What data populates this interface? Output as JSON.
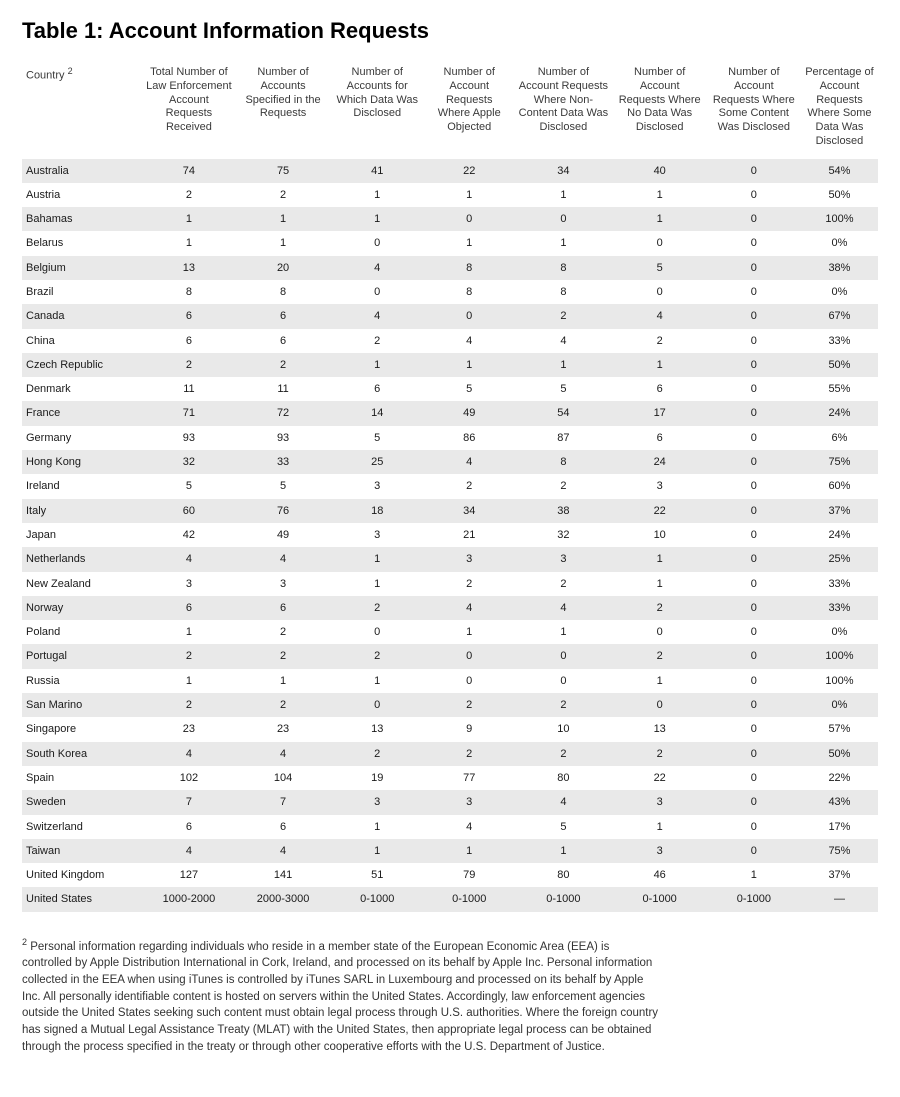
{
  "title": "Table 1: Account Information Requests",
  "footnote_marker": "2",
  "columns": [
    "Country",
    "Total Number of Law Enforcement Account Requests Received",
    "Number of Accounts Specified in the Requests",
    "Number of Accounts for Which Data Was Disclosed",
    "Number of Account Requests Where Apple Objected",
    "Number of Account Requests Where Non-Content Data Was Disclosed",
    "Number of Account Requests Where No Data Was Disclosed",
    "Number of Account Requests Where Some Content Was Disclosed",
    "Percentage of Account Requests Where Some Data Was Disclosed"
  ],
  "column_widths_pct": [
    14,
    11,
    11,
    11,
    10.5,
    11.5,
    11,
    11,
    9
  ],
  "rows": [
    {
      "country": "Australia",
      "c": [
        "74",
        "75",
        "41",
        "22",
        "34",
        "40",
        "0",
        "54%"
      ]
    },
    {
      "country": "Austria",
      "c": [
        "2",
        "2",
        "1",
        "1",
        "1",
        "1",
        "0",
        "50%"
      ]
    },
    {
      "country": "Bahamas",
      "c": [
        "1",
        "1",
        "1",
        "0",
        "0",
        "1",
        "0",
        "100%"
      ]
    },
    {
      "country": "Belarus",
      "c": [
        "1",
        "1",
        "0",
        "1",
        "1",
        "0",
        "0",
        "0%"
      ]
    },
    {
      "country": "Belgium",
      "c": [
        "13",
        "20",
        "4",
        "8",
        "8",
        "5",
        "0",
        "38%"
      ]
    },
    {
      "country": "Brazil",
      "c": [
        "8",
        "8",
        "0",
        "8",
        "8",
        "0",
        "0",
        "0%"
      ]
    },
    {
      "country": "Canada",
      "c": [
        "6",
        "6",
        "4",
        "0",
        "2",
        "4",
        "0",
        "67%"
      ]
    },
    {
      "country": "China",
      "c": [
        "6",
        "6",
        "2",
        "4",
        "4",
        "2",
        "0",
        "33%"
      ]
    },
    {
      "country": "Czech Republic",
      "c": [
        "2",
        "2",
        "1",
        "1",
        "1",
        "1",
        "0",
        "50%"
      ]
    },
    {
      "country": "Denmark",
      "c": [
        "11",
        "11",
        "6",
        "5",
        "5",
        "6",
        "0",
        "55%"
      ]
    },
    {
      "country": "France",
      "c": [
        "71",
        "72",
        "14",
        "49",
        "54",
        "17",
        "0",
        "24%"
      ]
    },
    {
      "country": "Germany",
      "c": [
        "93",
        "93",
        "5",
        "86",
        "87",
        "6",
        "0",
        "6%"
      ]
    },
    {
      "country": "Hong Kong",
      "c": [
        "32",
        "33",
        "25",
        "4",
        "8",
        "24",
        "0",
        "75%"
      ]
    },
    {
      "country": "Ireland",
      "c": [
        "5",
        "5",
        "3",
        "2",
        "2",
        "3",
        "0",
        "60%"
      ]
    },
    {
      "country": "Italy",
      "c": [
        "60",
        "76",
        "18",
        "34",
        "38",
        "22",
        "0",
        "37%"
      ]
    },
    {
      "country": "Japan",
      "c": [
        "42",
        "49",
        "3",
        "21",
        "32",
        "10",
        "0",
        "24%"
      ]
    },
    {
      "country": "Netherlands",
      "c": [
        "4",
        "4",
        "1",
        "3",
        "3",
        "1",
        "0",
        "25%"
      ]
    },
    {
      "country": "New Zealand",
      "c": [
        "3",
        "3",
        "1",
        "2",
        "2",
        "1",
        "0",
        "33%"
      ]
    },
    {
      "country": "Norway",
      "c": [
        "6",
        "6",
        "2",
        "4",
        "4",
        "2",
        "0",
        "33%"
      ]
    },
    {
      "country": "Poland",
      "c": [
        "1",
        "2",
        "0",
        "1",
        "1",
        "0",
        "0",
        "0%"
      ]
    },
    {
      "country": "Portugal",
      "c": [
        "2",
        "2",
        "2",
        "0",
        "0",
        "2",
        "0",
        "100%"
      ]
    },
    {
      "country": "Russia",
      "c": [
        "1",
        "1",
        "1",
        "0",
        "0",
        "1",
        "0",
        "100%"
      ]
    },
    {
      "country": "San Marino",
      "c": [
        "2",
        "2",
        "0",
        "2",
        "2",
        "0",
        "0",
        "0%"
      ]
    },
    {
      "country": "Singapore",
      "c": [
        "23",
        "23",
        "13",
        "9",
        "10",
        "13",
        "0",
        "57%"
      ]
    },
    {
      "country": "South Korea",
      "c": [
        "4",
        "4",
        "2",
        "2",
        "2",
        "2",
        "0",
        "50%"
      ]
    },
    {
      "country": "Spain",
      "c": [
        "102",
        "104",
        "19",
        "77",
        "80",
        "22",
        "0",
        "22%"
      ]
    },
    {
      "country": "Sweden",
      "c": [
        "7",
        "7",
        "3",
        "3",
        "4",
        "3",
        "0",
        "43%"
      ]
    },
    {
      "country": "Switzerland",
      "c": [
        "6",
        "6",
        "1",
        "4",
        "5",
        "1",
        "0",
        "17%"
      ]
    },
    {
      "country": "Taiwan",
      "c": [
        "4",
        "4",
        "1",
        "1",
        "1",
        "3",
        "0",
        "75%"
      ]
    },
    {
      "country": "United Kingdom",
      "c": [
        "127",
        "141",
        "51",
        "79",
        "80",
        "46",
        "1",
        "37%"
      ]
    },
    {
      "country": "United States",
      "c": [
        "1000-2000",
        "2000-3000",
        "0-1000",
        "0-1000",
        "0-1000",
        "0-1000",
        "0-1000",
        "—"
      ]
    }
  ],
  "footnote": "Personal information regarding individuals who reside in a member state of the European Economic Area (EEA) is controlled by Apple Distribution International in Cork, Ireland, and processed on its behalf by Apple Inc. Personal information collected in the EEA when using iTunes is controlled by iTunes SARL in Luxembourg and processed on its behalf by Apple Inc. All personally identifiable content is hosted on servers within the United States. Accordingly, law enforcement agencies outside the United States seeking such content must obtain legal process through U.S. authorities. Where the foreign country has signed a Mutual Legal Assistance Treaty (MLAT) with the United States, then appropriate legal process can be obtained through the process specified in the treaty or through other cooperative efforts with the U.S. Department of Justice.",
  "styles": {
    "row_odd_bg": "#e9e9e9",
    "row_even_bg": "#ffffff",
    "header_font_size_pt": 11,
    "body_font_size_pt": 11,
    "title_font_size_pt": 22,
    "footnote_font_size_pt": 11.5,
    "text_color": "#1a1a1a",
    "header_text_color": "#3a3a3a",
    "background_color": "#ffffff"
  }
}
